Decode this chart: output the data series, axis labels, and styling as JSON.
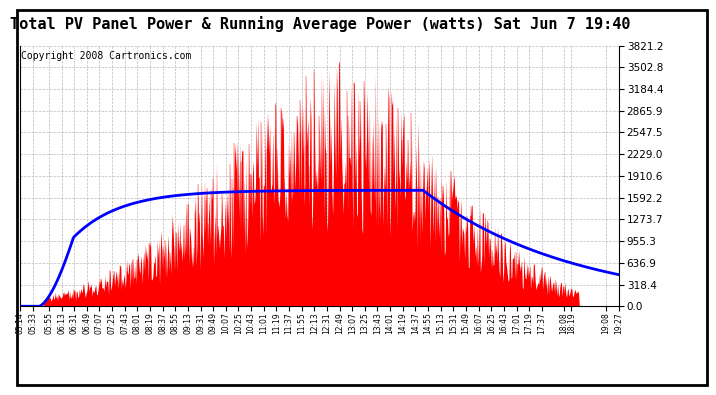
{
  "title": "Total PV Panel Power & Running Average Power (watts) Sat Jun 7 19:40",
  "copyright": "Copyright 2008 Cartronics.com",
  "y_max": 3821.2,
  "y_min": 0.0,
  "y_ticks": [
    0.0,
    318.4,
    636.9,
    955.3,
    1273.7,
    1592.2,
    1910.6,
    2229.0,
    2547.5,
    2865.9,
    3184.4,
    3502.8,
    3821.2
  ],
  "x_labels": [
    "05:14",
    "05:33",
    "05:55",
    "06:13",
    "06:31",
    "06:49",
    "07:07",
    "07:25",
    "07:43",
    "08:01",
    "08:19",
    "08:37",
    "08:55",
    "09:13",
    "09:31",
    "09:49",
    "10:07",
    "10:25",
    "10:43",
    "11:01",
    "11:19",
    "11:37",
    "11:55",
    "12:13",
    "12:31",
    "12:49",
    "13:07",
    "13:25",
    "13:43",
    "14:01",
    "14:19",
    "14:37",
    "14:55",
    "15:13",
    "15:31",
    "15:49",
    "16:07",
    "16:25",
    "16:43",
    "17:01",
    "17:19",
    "17:37",
    "18:08",
    "18:19",
    "19:08",
    "19:27"
  ],
  "bar_color": "#FF0000",
  "line_color": "#0000FF",
  "background_color": "#FFFFFF",
  "plot_bg_color": "#FFFFFF",
  "grid_color": "#AAAAAA",
  "title_fontsize": 11,
  "copyright_fontsize": 7
}
